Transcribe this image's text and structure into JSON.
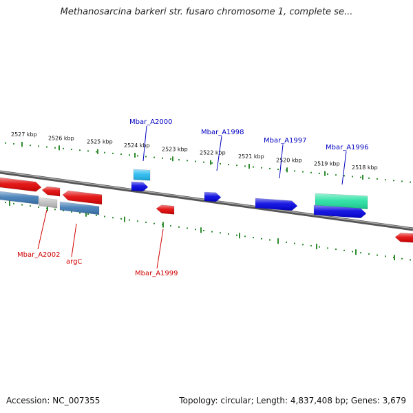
{
  "title": "Methanosarcina barkeri str. fusaro chromosome 1, complete se...",
  "footer": {
    "accession": "Accession: NC_007355",
    "summary": "Topology: circular; Length: 4,837,408 bp; Genes: 3,679"
  },
  "colors": {
    "backbone": "#777777",
    "tick": "#2e8b2e",
    "label_forward": "#0000c0",
    "label_reverse": "#d00000"
  },
  "kbp_ticks": [
    {
      "label": "2527 kbp"
    },
    {
      "label": "2526 kbp"
    },
    {
      "label": "2525 kbp"
    },
    {
      "label": "2524 kbp"
    },
    {
      "label": "2523 kbp"
    },
    {
      "label": "2522 kbp"
    },
    {
      "label": "2521 kbp"
    },
    {
      "label": "2520 kbp"
    },
    {
      "label": "2519 kbp"
    },
    {
      "label": "2518 kbp"
    }
  ],
  "gene_labels": [
    {
      "text": "Mbar_A2000",
      "strand": "forward"
    },
    {
      "text": "Mbar_A1998",
      "strand": "forward"
    },
    {
      "text": "Mbar_A1997",
      "strand": "forward"
    },
    {
      "text": "Mbar_A1996",
      "strand": "forward"
    },
    {
      "text": "Mbar_A2002",
      "strand": "reverse"
    },
    {
      "text": "argC",
      "strand": "reverse"
    },
    {
      "text": "Mbar_A1999",
      "strand": "reverse"
    }
  ],
  "features": [
    {
      "id": "f1",
      "color": "#e00000",
      "strand": "reverse",
      "kind": "gene"
    },
    {
      "id": "f2",
      "color": "#e00000",
      "strand": "reverse",
      "kind": "gene"
    },
    {
      "id": "f3",
      "color": "#e00000",
      "strand": "reverse",
      "kind": "gene"
    },
    {
      "id": "f4",
      "color": "#3a78b4",
      "strand": "reverse",
      "kind": "cds"
    },
    {
      "id": "f5",
      "color": "#bdbdbd",
      "strand": "reverse",
      "kind": "cds"
    },
    {
      "id": "f6",
      "color": "#3a78b4",
      "strand": "reverse",
      "kind": "cds"
    },
    {
      "id": "f7",
      "color": "#20b8f0",
      "strand": "forward",
      "kind": "cds"
    },
    {
      "id": "f8",
      "color": "#0000e0",
      "strand": "forward",
      "kind": "gene"
    },
    {
      "id": "f9",
      "color": "#e00000",
      "strand": "reverse",
      "kind": "gene"
    },
    {
      "id": "f10",
      "color": "#0000e0",
      "strand": "forward",
      "kind": "gene"
    },
    {
      "id": "f11",
      "color": "#0000e0",
      "strand": "forward",
      "kind": "gene"
    },
    {
      "id": "f12",
      "color": "#20e0a0",
      "strand": "forward",
      "kind": "cds"
    },
    {
      "id": "f13",
      "color": "#0000e0",
      "strand": "forward",
      "kind": "gene"
    },
    {
      "id": "f14",
      "color": "#e00000",
      "strand": "reverse",
      "kind": "gene"
    }
  ]
}
